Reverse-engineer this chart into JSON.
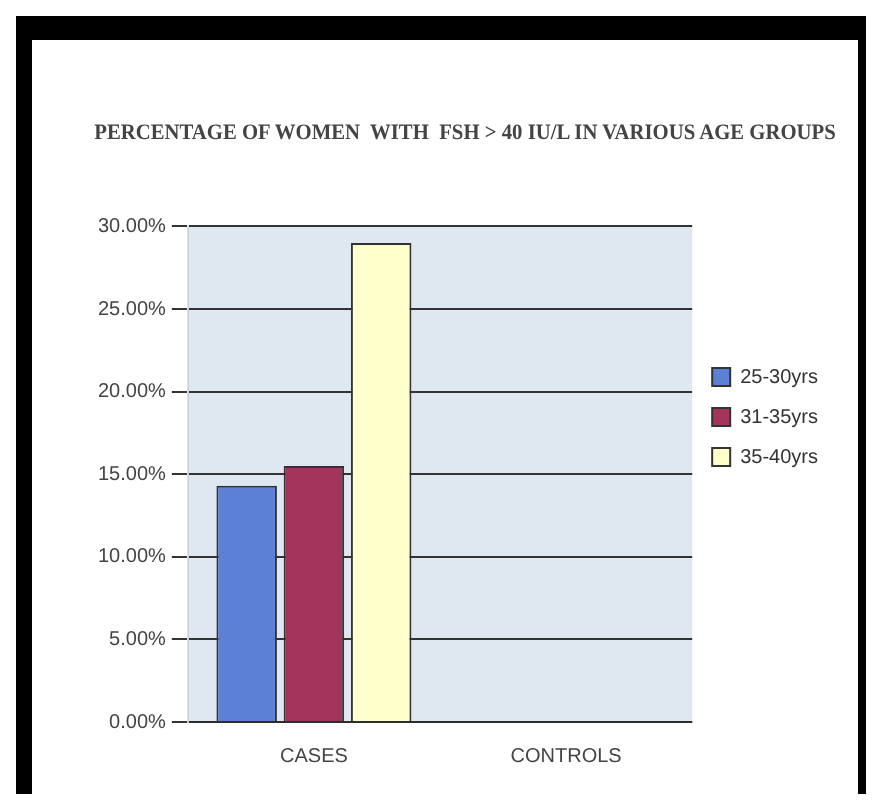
{
  "chart_data": {
    "type": "bar",
    "title": "PERCENTAGE OF WOMEN  WITH  FSH > 40 IU/L IN VARIOUS AGE GROUPS",
    "categories": [
      "CASES",
      "CONTROLS"
    ],
    "series": [
      {
        "name": "25-30yrs",
        "color": "#5b80d6",
        "values": [
          14.3,
          0
        ]
      },
      {
        "name": "31-35yrs",
        "color": "#a3345c",
        "values": [
          15.5,
          0
        ]
      },
      {
        "name": "35-40yrs",
        "color": "#ffffcc",
        "values": [
          29,
          0
        ]
      }
    ],
    "ylim": [
      0,
      30
    ],
    "yticks": [
      {
        "value": 0,
        "label": "0.00%"
      },
      {
        "value": 5,
        "label": "5.00%"
      },
      {
        "value": 10,
        "label": "10.00%"
      },
      {
        "value": 15,
        "label": "15.00%"
      },
      {
        "value": 20,
        "label": "20.00%"
      },
      {
        "value": 25,
        "label": "25.00%"
      },
      {
        "value": 30,
        "label": "30.00%"
      }
    ],
    "grid": "y",
    "legend": "right"
  }
}
